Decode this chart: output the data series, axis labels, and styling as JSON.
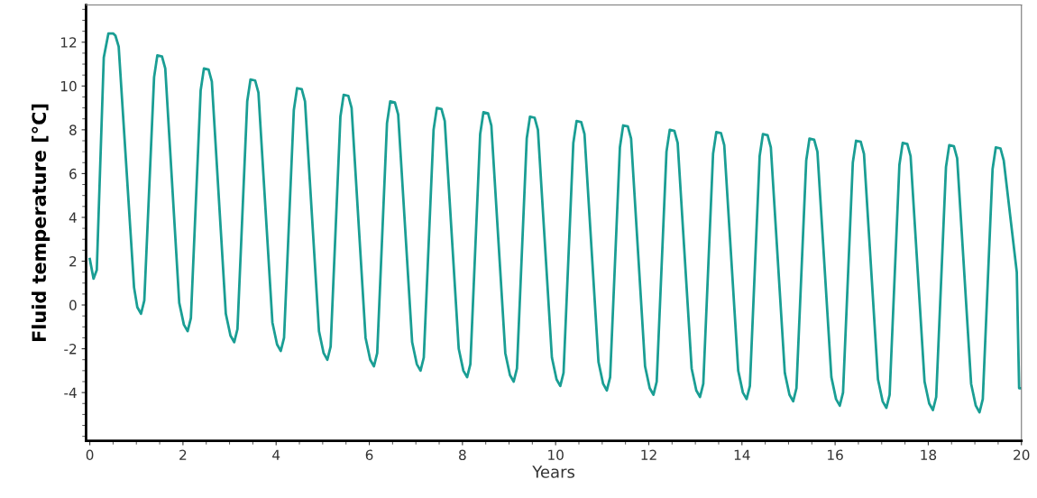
{
  "chart_data": {
    "type": "line",
    "xlabel": "Years",
    "ylabel": "Fluid temperature [°C]",
    "xlim": [
      -0.08,
      20
    ],
    "ylim": [
      -6.2,
      13.7
    ],
    "xticks": [
      0,
      2,
      4,
      6,
      8,
      10,
      12,
      14,
      16,
      18,
      20
    ],
    "yticks": [
      -4,
      -2,
      0,
      2,
      4,
      6,
      8,
      10,
      12
    ],
    "grid": false,
    "legend": false,
    "marker": "none",
    "line_style": "solid",
    "series": [
      {
        "color": "#1a9e94",
        "x": [
          0,
          0.08,
          0.15,
          0.3,
          0.4,
          0.5,
          0.55,
          0.62,
          0.95,
          1.02,
          1.1,
          1.17,
          1.38,
          1.45,
          1.55,
          1.62,
          1.92,
          2.02,
          2.1,
          2.17,
          2.38,
          2.45,
          2.55,
          2.62,
          2.92,
          3.02,
          3.1,
          3.17,
          3.38,
          3.45,
          3.55,
          3.62,
          3.92,
          4.02,
          4.1,
          4.17,
          4.38,
          4.45,
          4.55,
          4.62,
          4.92,
          5.02,
          5.1,
          5.17,
          5.38,
          5.45,
          5.55,
          5.62,
          5.92,
          6.02,
          6.1,
          6.17,
          6.38,
          6.45,
          6.55,
          6.62,
          6.92,
          7.02,
          7.1,
          7.17,
          7.38,
          7.45,
          7.55,
          7.62,
          7.92,
          8.02,
          8.1,
          8.17,
          8.38,
          8.45,
          8.55,
          8.62,
          8.92,
          9.02,
          9.1,
          9.17,
          9.38,
          9.45,
          9.55,
          9.62,
          9.92,
          10.02,
          10.1,
          10.17,
          10.38,
          10.45,
          10.55,
          10.62,
          10.92,
          11.02,
          11.1,
          11.17,
          11.38,
          11.45,
          11.55,
          11.62,
          11.92,
          12.02,
          12.1,
          12.17,
          12.38,
          12.45,
          12.55,
          12.62,
          12.92,
          13.02,
          13.1,
          13.17,
          13.38,
          13.45,
          13.55,
          13.62,
          13.92,
          14.02,
          14.1,
          14.17,
          14.38,
          14.45,
          14.55,
          14.62,
          14.92,
          15.02,
          15.1,
          15.17,
          15.38,
          15.45,
          15.55,
          15.62,
          15.92,
          16.02,
          16.1,
          16.17,
          16.38,
          16.45,
          16.55,
          16.62,
          16.92,
          17.02,
          17.1,
          17.17,
          17.38,
          17.45,
          17.55,
          17.62,
          17.92,
          18.02,
          18.1,
          18.17,
          18.38,
          18.45,
          18.55,
          18.62,
          18.92,
          19.02,
          19.1,
          19.17,
          19.38,
          19.45,
          19.55,
          19.62,
          19.9,
          19.95,
          20
        ],
        "values": [
          2.1,
          1.2,
          1.6,
          11.3,
          12.4,
          12.4,
          12.3,
          11.8,
          0.8,
          -0.1,
          -0.4,
          0.2,
          10.4,
          11.4,
          11.35,
          10.8,
          0.1,
          -0.9,
          -1.2,
          -0.6,
          9.8,
          10.8,
          10.75,
          10.2,
          -0.4,
          -1.4,
          -1.7,
          -1.1,
          9.3,
          10.3,
          10.25,
          9.7,
          -0.8,
          -1.8,
          -2.1,
          -1.5,
          8.9,
          9.9,
          9.85,
          9.3,
          -1.2,
          -2.2,
          -2.5,
          -1.9,
          8.6,
          9.6,
          9.55,
          9.0,
          -1.5,
          -2.5,
          -2.8,
          -2.2,
          8.3,
          9.3,
          9.25,
          8.7,
          -1.7,
          -2.7,
          -3.0,
          -2.4,
          8.0,
          9.0,
          8.95,
          8.4,
          -2.0,
          -3.0,
          -3.3,
          -2.7,
          7.8,
          8.8,
          8.75,
          8.2,
          -2.2,
          -3.2,
          -3.5,
          -2.9,
          7.6,
          8.6,
          8.55,
          8.0,
          -2.4,
          -3.4,
          -3.7,
          -3.1,
          7.4,
          8.4,
          8.35,
          7.8,
          -2.6,
          -3.6,
          -3.9,
          -3.3,
          7.2,
          8.2,
          8.15,
          7.6,
          -2.8,
          -3.8,
          -4.1,
          -3.5,
          7.0,
          8.0,
          7.95,
          7.4,
          -2.9,
          -3.9,
          -4.2,
          -3.6,
          6.9,
          7.9,
          7.85,
          7.3,
          -3.0,
          -4.0,
          -4.3,
          -3.7,
          6.8,
          7.8,
          7.75,
          7.2,
          -3.1,
          -4.1,
          -4.4,
          -3.8,
          6.6,
          7.6,
          7.55,
          7.0,
          -3.3,
          -4.3,
          -4.6,
          -4.0,
          6.5,
          7.5,
          7.45,
          6.9,
          -3.4,
          -4.4,
          -4.7,
          -4.1,
          6.4,
          7.4,
          7.35,
          6.8,
          -3.5,
          -4.5,
          -4.8,
          -4.2,
          6.3,
          7.3,
          7.25,
          6.7,
          -3.6,
          -4.6,
          -4.9,
          -4.3,
          6.2,
          7.2,
          7.15,
          6.6,
          1.5,
          -3.8,
          -3.8
        ]
      }
    ]
  }
}
